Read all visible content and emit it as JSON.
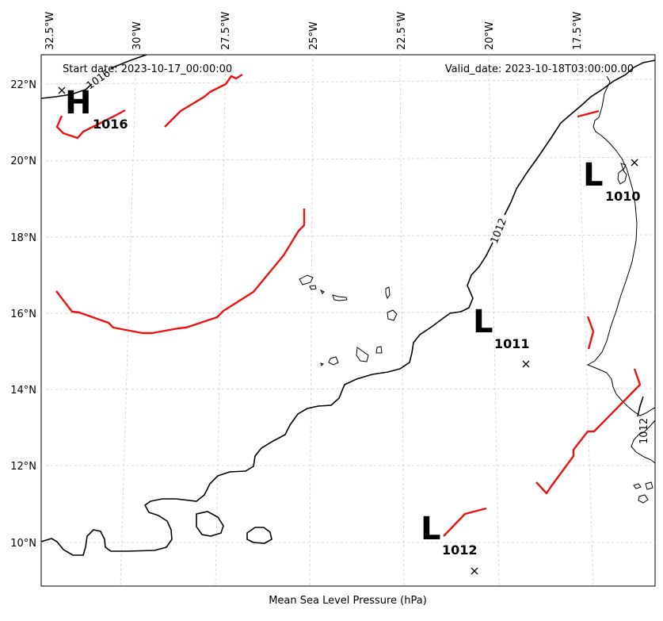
{
  "header": {
    "start_date": "Start date: 2023-10-17_00:00:00",
    "valid_date": "Valid_date: 2023-10-18T03:00:00.00"
  },
  "footer": {
    "caption": "Mean Sea Level Pressure (hPa)"
  },
  "lon_ticks": [
    "32.5°W",
    "30°W",
    "27.5°W",
    "25°W",
    "22.5°W",
    "20°W",
    "17.5°W"
  ],
  "lat_ticks": [
    "22°N",
    "20°N",
    "18°N",
    "16°N",
    "14°N",
    "12°N",
    "10°N"
  ],
  "contour_labels": {
    "upper_left": "1016",
    "center": "1012",
    "right": "1012"
  },
  "pressure_centers": [
    {
      "kind": "H",
      "value": "1016"
    },
    {
      "kind": "L",
      "value": "1010"
    },
    {
      "kind": "L",
      "value": "1011"
    },
    {
      "kind": "L",
      "value": "1012"
    }
  ],
  "colors": {
    "isobar": "#000000",
    "trough": "#ee1111",
    "grid": "#cccccc",
    "coast": "#000000"
  }
}
